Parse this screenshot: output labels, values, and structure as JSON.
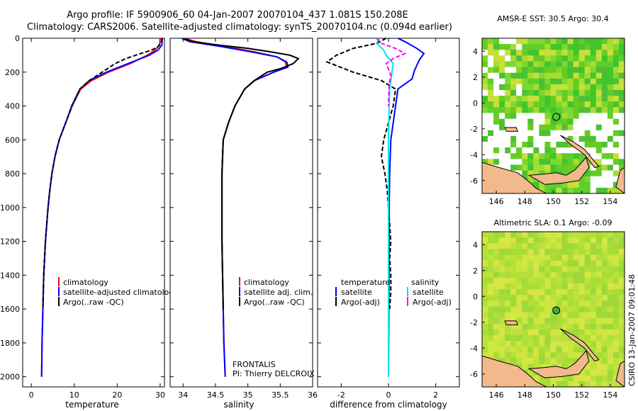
{
  "figure": {
    "title_line1": "Argo profile: IF 5900906_60 04-Jan-2007 20070104_437 1.081S 150.208E",
    "title_line2": "Climatology: CARS2006. Satellite-adjusted climatology: synTS_20070104.nc (0.094d earlier)",
    "credit": "CSIRO 13-Jan-2007 09:01:48"
  },
  "colors": {
    "climatology": "#ff0000",
    "satellite": "#0000ff",
    "argo": "#000000",
    "sal_satellite": "#00e0e8",
    "sal_argo": "#ff00ff",
    "land": "#f2b98c",
    "missing": "#ffffff"
  },
  "chart_data": [
    {
      "id": "temperature",
      "type": "line",
      "xlabel": "temperature",
      "ylabel": "",
      "xlim": [
        -2,
        31
      ],
      "ylim": [
        2060,
        0
      ],
      "xticks": [
        0,
        10,
        20,
        30
      ],
      "yticks": [
        0,
        200,
        400,
        600,
        800,
        1000,
        1200,
        1400,
        1600,
        1800,
        2000
      ],
      "legend": [
        "climatology",
        "satellite-adjusted climatology",
        "Argo(..raw -QC)"
      ],
      "series": [
        {
          "name": "climatology",
          "color": "#ff0000",
          "dash": false,
          "points": [
            [
              30.0,
              0
            ],
            [
              29.9,
              40
            ],
            [
              28.8,
              70
            ],
            [
              27.0,
              100
            ],
            [
              23.0,
              150
            ],
            [
              18.0,
              200
            ],
            [
              14.0,
              250
            ],
            [
              11.5,
              300
            ],
            [
              9.5,
              400
            ],
            [
              8.0,
              500
            ],
            [
              6.5,
              600
            ],
            [
              5.5,
              700
            ],
            [
              4.8,
              800
            ],
            [
              4.3,
              900
            ],
            [
              3.9,
              1000
            ],
            [
              3.6,
              1100
            ],
            [
              3.3,
              1200
            ],
            [
              3.1,
              1300
            ],
            [
              2.9,
              1400
            ],
            [
              2.8,
              1500
            ],
            [
              2.7,
              1600
            ],
            [
              2.6,
              1700
            ],
            [
              2.5,
              1800
            ],
            [
              2.45,
              1900
            ],
            [
              2.4,
              2000
            ]
          ]
        },
        {
          "name": "satellite-adjusted climatology",
          "color": "#0000ff",
          "dash": false,
          "points": [
            [
              30.5,
              0
            ],
            [
              30.4,
              40
            ],
            [
              29.5,
              70
            ],
            [
              27.5,
              100
            ],
            [
              22.5,
              150
            ],
            [
              17.5,
              200
            ],
            [
              13.5,
              250
            ],
            [
              11.3,
              300
            ],
            [
              9.4,
              400
            ],
            [
              8.0,
              500
            ],
            [
              6.5,
              600
            ],
            [
              5.5,
              700
            ],
            [
              4.8,
              800
            ],
            [
              4.3,
              900
            ],
            [
              3.9,
              1000
            ],
            [
              3.6,
              1100
            ],
            [
              3.3,
              1200
            ],
            [
              3.1,
              1300
            ],
            [
              2.9,
              1400
            ],
            [
              2.8,
              1500
            ],
            [
              2.7,
              1600
            ],
            [
              2.6,
              1700
            ],
            [
              2.5,
              1800
            ],
            [
              2.45,
              1900
            ],
            [
              2.4,
              2000
            ]
          ]
        },
        {
          "name": "Argo(..raw -QC)",
          "color": "#000000",
          "dash": true,
          "points": [
            [
              30.4,
              0
            ],
            [
              30.3,
              20
            ],
            [
              29.5,
              50
            ],
            [
              28.0,
              70
            ],
            [
              25.5,
              90
            ],
            [
              22.0,
              120
            ],
            [
              19.5,
              150
            ],
            [
              16.5,
              200
            ],
            [
              13.5,
              250
            ],
            [
              11.3,
              300
            ],
            [
              9.5,
              400
            ],
            [
              8.0,
              500
            ],
            [
              6.5,
              600
            ],
            [
              5.5,
              700
            ],
            [
              4.8,
              800
            ],
            [
              4.3,
              900
            ],
            [
              3.9,
              1000
            ],
            [
              3.6,
              1100
            ],
            [
              3.3,
              1200
            ],
            [
              3.1,
              1300
            ],
            [
              2.9,
              1400
            ],
            [
              2.8,
              1500
            ],
            [
              2.7,
              1600
            ]
          ]
        }
      ]
    },
    {
      "id": "salinity",
      "type": "line",
      "xlabel": "salinity",
      "ylabel": "",
      "xlim": [
        33.8,
        36.0
      ],
      "ylim": [
        2060,
        0
      ],
      "xticks": [
        34,
        34.5,
        35,
        35.5,
        36
      ],
      "yticks": [],
      "legend": [
        "climatology",
        "satellite adj. clim.",
        "Argo(..raw -QC)"
      ],
      "annotation_line1": "FRONTALIS",
      "annotation_line2": "PI: Thierry DELCROIX",
      "series": [
        {
          "name": "climatology",
          "color": "#ff0000",
          "dash": false,
          "points": [
            [
              34.02,
              0
            ],
            [
              34.2,
              20
            ],
            [
              34.65,
              50
            ],
            [
              35.1,
              80
            ],
            [
              35.45,
              110
            ],
            [
              35.58,
              140
            ],
            [
              35.6,
              170
            ],
            [
              35.4,
              200
            ],
            [
              35.1,
              250
            ],
            [
              34.95,
              300
            ],
            [
              34.8,
              400
            ],
            [
              34.7,
              500
            ],
            [
              34.62,
              600
            ],
            [
              34.6,
              800
            ],
            [
              34.6,
              1000
            ],
            [
              34.6,
              1200
            ],
            [
              34.61,
              1400
            ],
            [
              34.62,
              1600
            ],
            [
              34.63,
              1800
            ],
            [
              34.65,
              2000
            ]
          ]
        },
        {
          "name": "satellite adj. clim.",
          "color": "#0000ff",
          "dash": false,
          "points": [
            [
              33.98,
              0
            ],
            [
              34.1,
              20
            ],
            [
              34.6,
              50
            ],
            [
              35.05,
              80
            ],
            [
              35.45,
              110
            ],
            [
              35.6,
              140
            ],
            [
              35.62,
              170
            ],
            [
              35.4,
              200
            ],
            [
              35.1,
              250
            ],
            [
              34.95,
              300
            ],
            [
              34.8,
              400
            ],
            [
              34.7,
              500
            ],
            [
              34.62,
              600
            ],
            [
              34.6,
              800
            ],
            [
              34.6,
              1000
            ],
            [
              34.6,
              1200
            ],
            [
              34.61,
              1400
            ],
            [
              34.62,
              1600
            ],
            [
              34.63,
              1800
            ],
            [
              34.65,
              2000
            ]
          ]
        },
        {
          "name": "Argo(..raw -QC)",
          "color": "#000000",
          "dash": false,
          "points": [
            [
              34.0,
              0
            ],
            [
              34.15,
              20
            ],
            [
              34.55,
              40
            ],
            [
              35.0,
              60
            ],
            [
              35.35,
              80
            ],
            [
              35.65,
              100
            ],
            [
              35.78,
              120
            ],
            [
              35.7,
              150
            ],
            [
              35.5,
              180
            ],
            [
              35.3,
              200
            ],
            [
              35.1,
              250
            ],
            [
              34.95,
              300
            ],
            [
              34.8,
              400
            ],
            [
              34.7,
              500
            ],
            [
              34.62,
              600
            ],
            [
              34.6,
              800
            ],
            [
              34.6,
              1000
            ],
            [
              34.6,
              1200
            ],
            [
              34.61,
              1400
            ],
            [
              34.62,
              1600
            ]
          ]
        }
      ]
    },
    {
      "id": "difference",
      "type": "line",
      "xlabel": "difference from climatology",
      "ylabel": "",
      "xlim": [
        -3.0,
        3.0
      ],
      "ylim": [
        2060,
        0
      ],
      "xticks": [
        -2,
        0,
        2
      ],
      "yticks": [],
      "legend_group1_title": "temperature",
      "legend_group1": [
        "satellite",
        "Argo(-adj)"
      ],
      "legend_group2_title": "salinity",
      "legend_group2": [
        "satellite",
        "Argo(-adj)"
      ],
      "series": [
        {
          "name": "temperature satellite",
          "color": "#0000ff",
          "dash": false,
          "points": [
            [
              0.4,
              0
            ],
            [
              0.7,
              20
            ],
            [
              1.2,
              60
            ],
            [
              1.5,
              90
            ],
            [
              1.3,
              130
            ],
            [
              1.1,
              190
            ],
            [
              1.0,
              240
            ],
            [
              0.4,
              300
            ],
            [
              0.3,
              400
            ],
            [
              0.2,
              500
            ],
            [
              0.1,
              600
            ],
            [
              0.05,
              800
            ],
            [
              0.03,
              1000
            ],
            [
              0.02,
              1500
            ],
            [
              0.0,
              2000
            ]
          ]
        },
        {
          "name": "temperature Argo(-adj)",
          "color": "#000000",
          "dash": true,
          "points": [
            [
              -0.1,
              0
            ],
            [
              -0.5,
              30
            ],
            [
              -1.5,
              60
            ],
            [
              -2.2,
              100
            ],
            [
              -2.6,
              140
            ],
            [
              -1.5,
              200
            ],
            [
              -0.3,
              250
            ],
            [
              0.3,
              300
            ],
            [
              0.2,
              400
            ],
            [
              0.0,
              500
            ],
            [
              -0.2,
              600
            ],
            [
              -0.3,
              700
            ],
            [
              -0.15,
              800
            ],
            [
              -0.05,
              900
            ],
            [
              0.0,
              1000
            ],
            [
              0.05,
              1100
            ],
            [
              0.1,
              1200
            ],
            [
              0.05,
              1300
            ],
            [
              0.1,
              1400
            ],
            [
              0.1,
              1500
            ],
            [
              0.05,
              1600
            ]
          ]
        },
        {
          "name": "salinity satellite",
          "color": "#00e0e8",
          "dash": false,
          "points": [
            [
              -0.4,
              0
            ],
            [
              -0.5,
              30
            ],
            [
              -0.2,
              70
            ],
            [
              -0.1,
              100
            ],
            [
              0.2,
              150
            ],
            [
              0.15,
              200
            ],
            [
              0.1,
              250
            ],
            [
              0.05,
              300
            ],
            [
              0.03,
              400
            ],
            [
              0.0,
              600
            ],
            [
              0.0,
              800
            ],
            [
              0.0,
              1000
            ],
            [
              0.0,
              1500
            ],
            [
              0.0,
              2000
            ]
          ]
        },
        {
          "name": "salinity Argo(-adj)",
          "color": "#ff00ff",
          "dash": true,
          "points": [
            [
              -0.5,
              0
            ],
            [
              -0.3,
              30
            ],
            [
              0.3,
              60
            ],
            [
              0.7,
              90
            ],
            [
              0.2,
              120
            ],
            [
              -0.1,
              150
            ],
            [
              0.0,
              180
            ],
            [
              0.1,
              220
            ],
            [
              0.05,
              260
            ],
            [
              0.02,
              300
            ],
            [
              0.0,
              400
            ]
          ]
        }
      ]
    },
    {
      "id": "amsr-sst",
      "type": "heatmap",
      "title": "AMSR-E SST: 30.5 Argo: 30.4",
      "xlim": [
        145,
        155
      ],
      "ylim": [
        -7,
        5
      ],
      "xticks": [
        146,
        148,
        150,
        152,
        154
      ],
      "yticks": [
        -6,
        -4,
        -2,
        0,
        2,
        4
      ],
      "marker": [
        150.208,
        -1.081
      ]
    },
    {
      "id": "altimetric-sla",
      "type": "heatmap",
      "title": "Altimetric SLA: 0.1  Argo: -0.09",
      "xlim": [
        145,
        155
      ],
      "ylim": [
        -7,
        5
      ],
      "xticks": [
        146,
        148,
        150,
        152,
        154
      ],
      "yticks": [
        -6,
        -4,
        -2,
        0,
        2,
        4
      ],
      "marker": [
        150.208,
        -1.081
      ]
    }
  ]
}
